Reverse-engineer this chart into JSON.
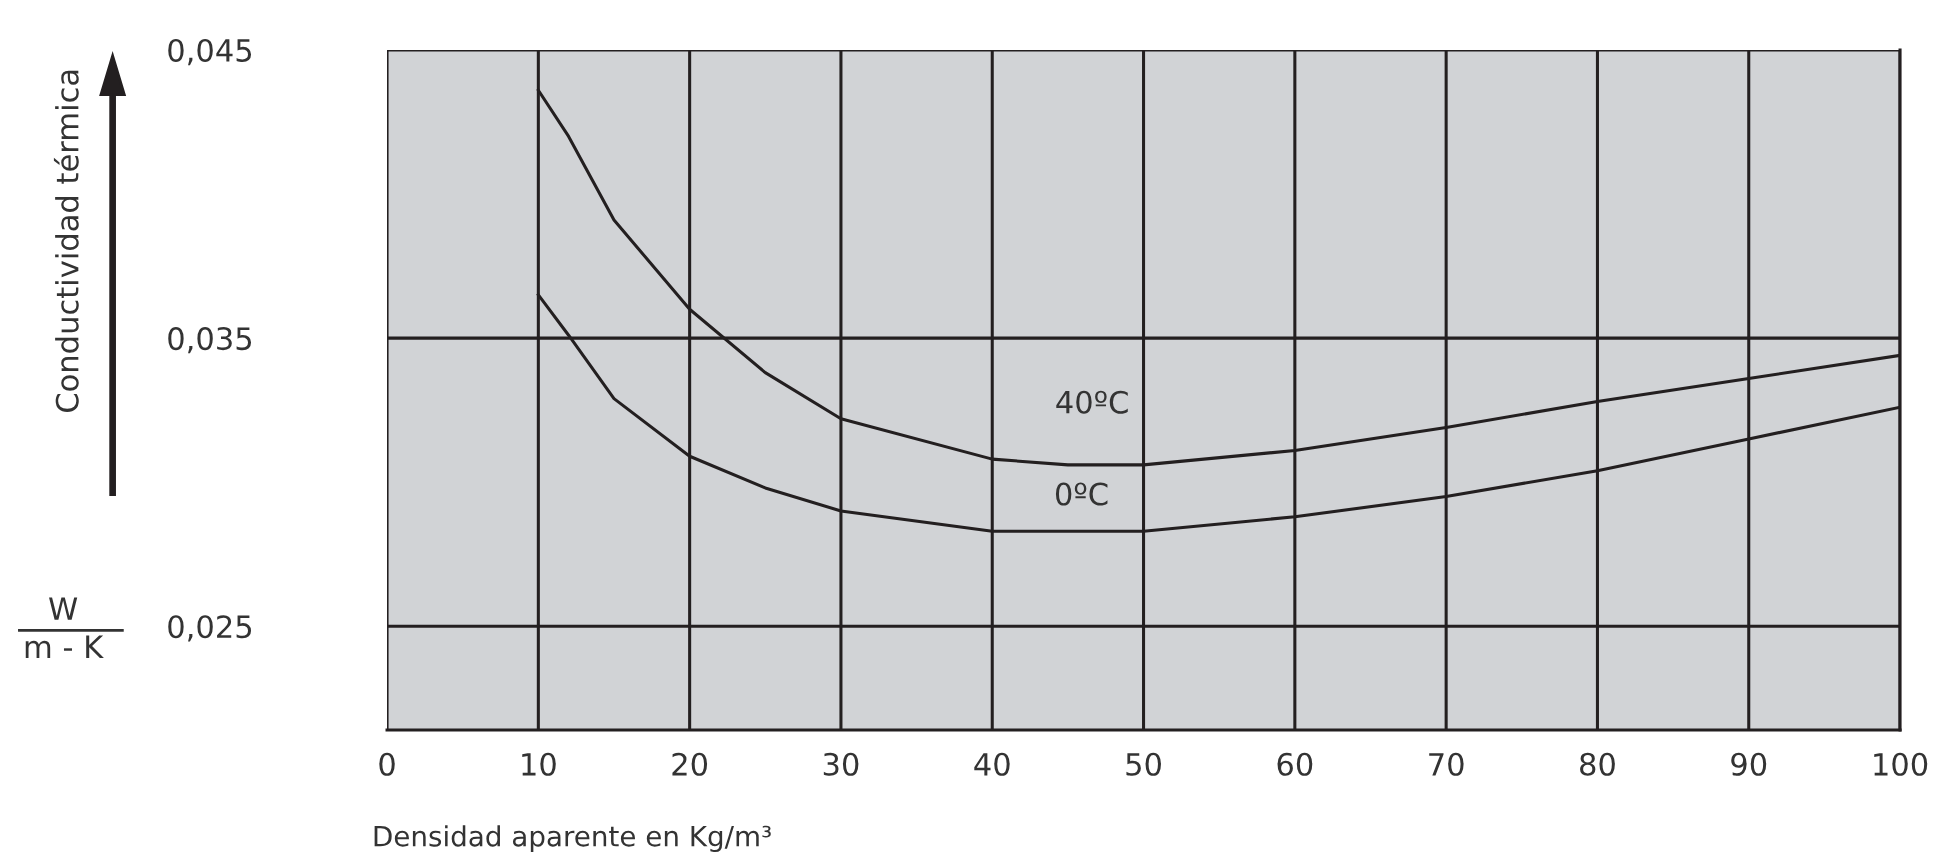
{
  "chart_data": {
    "type": "line",
    "xlabel": "Densidad aparente en Kg/m³",
    "ylabel": "Conductividad térmica",
    "x": [
      10,
      12,
      15,
      20,
      25,
      30,
      40,
      45,
      50,
      60,
      70,
      80,
      90,
      100
    ],
    "series": [
      {
        "color": "#231f20",
        "values": [
          0.0436,
          0.042,
          0.0391,
          0.036,
          0.0338,
          0.0322,
          0.0308,
          0.0306,
          0.0306,
          0.0311,
          0.0319,
          0.0328,
          0.0336,
          0.0344
        ]
      },
      {
        "color": "#231f20",
        "values": [
          0.0365,
          0.0351,
          0.0329,
          0.0309,
          0.0298,
          0.029,
          0.0283,
          0.0283,
          0.0283,
          0.0288,
          0.0295,
          0.0304,
          0.0315,
          0.0326
        ]
      }
    ],
    "xlim": [
      0,
      100
    ],
    "ylim": [
      0.0214,
      0.045
    ],
    "xticks": [
      0,
      10,
      20,
      30,
      40,
      50,
      60,
      70,
      80,
      90,
      100
    ],
    "yticks": [
      {
        "value": 0.025,
        "label": "0,025"
      },
      {
        "value": 0.035,
        "label": "0,035"
      },
      {
        "value": 0.045,
        "label": "0,045"
      }
    ],
    "grid": true,
    "marker": "none",
    "line_style": "solid",
    "annotations": [
      "40ºC",
      "0ºC",
      "W",
      "m - K"
    ]
  }
}
